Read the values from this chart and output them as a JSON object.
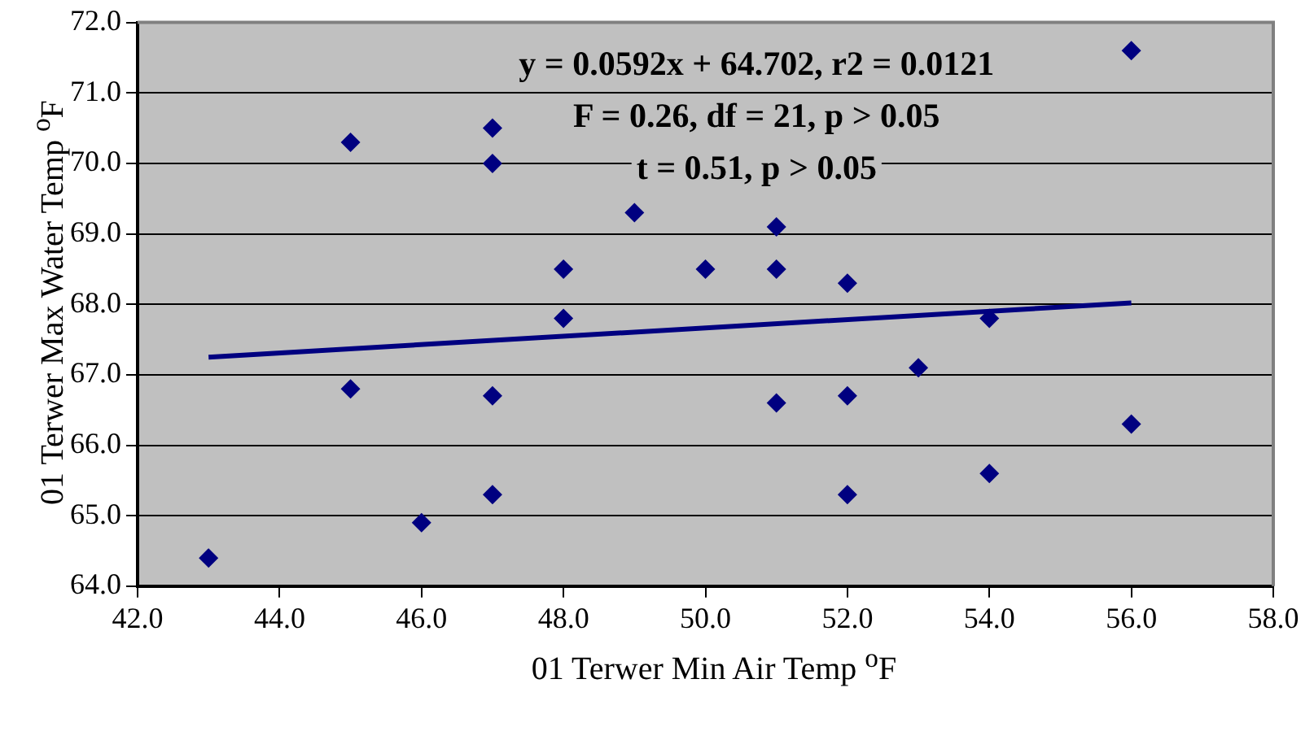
{
  "chart_data": {
    "type": "scatter",
    "xlabel": "01 Terwer Min Air Temp $^{o}$F",
    "ylabel": "01 Terwer Max Water Temp $^{o}$F",
    "annotations": [
      "y = 0.0592x + 64.702, r2 = 0.0121",
      "F = 0.26, df = 21, p > 0.05",
      "t = 0.51, p > 0.05"
    ],
    "series": [
      {
        "color": "#000080",
        "marker": "diamond",
        "x": [
          43,
          45,
          45,
          46,
          47,
          47,
          47,
          47,
          48,
          48,
          49,
          50,
          51,
          51,
          51,
          52,
          52,
          52,
          53,
          54,
          54,
          56,
          56
        ],
        "values": [
          64.4,
          70.3,
          66.8,
          64.9,
          70.5,
          70.0,
          66.7,
          65.3,
          68.5,
          67.8,
          69.3,
          68.5,
          69.1,
          68.5,
          66.6,
          68.3,
          66.7,
          65.3,
          67.1,
          67.8,
          65.6,
          71.6,
          66.3
        ]
      },
      {
        "type": "line",
        "color": "#000080",
        "marker": "none",
        "x": [
          43,
          56
        ],
        "values": [
          67.25,
          68.02
        ]
      }
    ],
    "xlim": [
      42,
      58
    ],
    "xticks": [
      {
        "value": 42,
        "label": "42.0"
      },
      {
        "value": 44,
        "label": "44.0"
      },
      {
        "value": 46,
        "label": "46.0"
      },
      {
        "value": 48,
        "label": "48.0"
      },
      {
        "value": 50,
        "label": "50.0"
      },
      {
        "value": 52,
        "label": "52.0"
      },
      {
        "value": 54,
        "label": "54.0"
      },
      {
        "value": 56,
        "label": "56.0"
      },
      {
        "value": 58,
        "label": "58.0"
      }
    ],
    "ylim": [
      64,
      72
    ],
    "yticks": [
      {
        "value": 64,
        "label": "64.0"
      },
      {
        "value": 65,
        "label": "65.0"
      },
      {
        "value": 66,
        "label": "66.0"
      },
      {
        "value": 67,
        "label": "67.0"
      },
      {
        "value": 68,
        "label": "68.0"
      },
      {
        "value": 69,
        "label": "69.0"
      },
      {
        "value": 70,
        "label": "70.0"
      },
      {
        "value": 71,
        "label": "71.0"
      },
      {
        "value": 72,
        "label": "72.0"
      }
    ],
    "grid": "y",
    "legend": false
  }
}
